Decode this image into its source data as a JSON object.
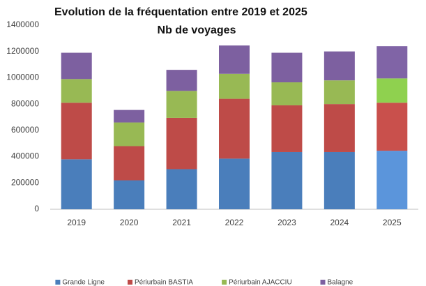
{
  "chart_data": {
    "type": "stacked_bar",
    "title": "Evolution de la fréquentation entre  2019 et 2025",
    "subtitle": "Nb de voyages",
    "categories": [
      "2019",
      "2020",
      "2021",
      "2022",
      "2023",
      "2024",
      "2025"
    ],
    "series": [
      {
        "name": "Grande Ligne",
        "color": "#4a7ebb",
        "colors": [
          "#4a7ebb",
          "#4a7ebb",
          "#4a7ebb",
          "#4a7ebb",
          "#4a7ebb",
          "#4a7ebb",
          "#5b95db"
        ],
        "values": [
          380000,
          220000,
          305000,
          385000,
          435000,
          435000,
          445000
        ]
      },
      {
        "name": "Périurbain BASTIA",
        "color": "#be4b48",
        "colors": [
          "#be4b48",
          "#be4b48",
          "#be4b48",
          "#be4b48",
          "#be4b48",
          "#be4b48",
          "#c9504c"
        ],
        "values": [
          430000,
          260000,
          390000,
          455000,
          355000,
          365000,
          365000
        ]
      },
      {
        "name": "Périurbain AJACCIU",
        "color": "#98b954",
        "colors": [
          "#98b954",
          "#98b954",
          "#98b954",
          "#98b954",
          "#98b954",
          "#98b954",
          "#8fd14f"
        ],
        "values": [
          180000,
          180000,
          205000,
          190000,
          175000,
          180000,
          185000
        ]
      },
      {
        "name": "Balagne",
        "color": "#7d60a0",
        "colors": [
          "#7d60a0",
          "#7d60a0",
          "#7d60a0",
          "#7d60a0",
          "#7d60a0",
          "#7d60a0",
          "#8064a6"
        ],
        "values": [
          200000,
          95000,
          160000,
          215000,
          225000,
          220000,
          245000
        ]
      }
    ],
    "ylim": [
      0,
      1400000
    ],
    "yticks": [
      0,
      200000,
      400000,
      600000,
      800000,
      1000000,
      1200000,
      1400000
    ],
    "grid": false,
    "legend": "bottom"
  }
}
